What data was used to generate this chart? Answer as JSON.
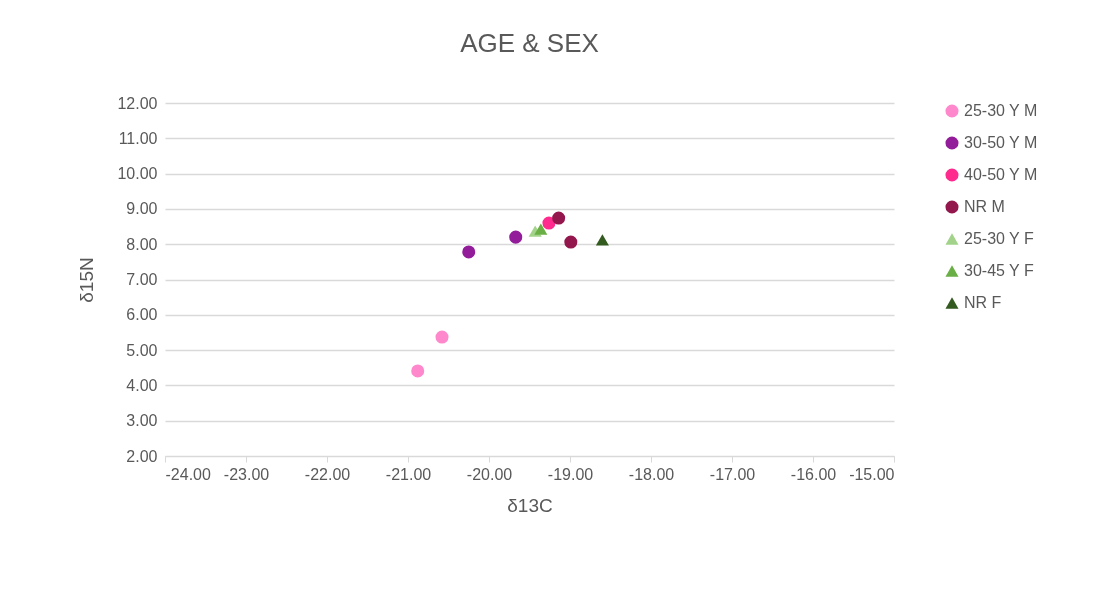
{
  "chart_data": {
    "type": "scatter",
    "title": "AGE & SEX",
    "xlabel": "δ13C",
    "ylabel": "δ15N",
    "xlim": [
      -24,
      -15
    ],
    "xticks": [
      {
        "value": -24,
        "label": "-24.00"
      },
      {
        "value": -23,
        "label": "-23.00"
      },
      {
        "value": -22,
        "label": "-22.00"
      },
      {
        "value": -21,
        "label": "-21.00"
      },
      {
        "value": -20,
        "label": "-20.00"
      },
      {
        "value": -19,
        "label": "-19.00"
      },
      {
        "value": -18,
        "label": "-18.00"
      },
      {
        "value": -17,
        "label": "-17.00"
      },
      {
        "value": -16,
        "label": "-16.00"
      },
      {
        "value": -15,
        "label": "-15.00"
      }
    ],
    "ylim": [
      2,
      12
    ],
    "yticks": [
      {
        "value": 2,
        "label": "2.00"
      },
      {
        "value": 3,
        "label": "3.00"
      },
      {
        "value": 4,
        "label": "4.00"
      },
      {
        "value": 5,
        "label": "5.00"
      },
      {
        "value": 6,
        "label": "6.00"
      },
      {
        "value": 7,
        "label": "7.00"
      },
      {
        "value": 8,
        "label": "8.00"
      },
      {
        "value": 9,
        "label": "9.00"
      },
      {
        "value": 10,
        "label": "10.00"
      },
      {
        "value": 11,
        "label": "11.00"
      },
      {
        "value": 12,
        "label": "12.00"
      }
    ],
    "grid": "y",
    "legend": "right",
    "series": [
      {
        "name": "25-30 Y M",
        "color": "#ff88cc",
        "marker": "circle",
        "x": [
          -20.88,
          -20.58
        ],
        "values": [
          4.41,
          5.37
        ]
      },
      {
        "name": "30-50 Y  M",
        "color": "#921c99",
        "marker": "circle",
        "x": [
          -20.25,
          -19.67
        ],
        "values": [
          7.78,
          8.2
        ]
      },
      {
        "name": "40-50 Y M",
        "color": "#ff2a8e",
        "marker": "circle",
        "x": [
          -19.26
        ],
        "values": [
          8.6
        ]
      },
      {
        "name": "NR M",
        "color": "#93174d",
        "marker": "circle",
        "x": [
          -19.14,
          -18.99
        ],
        "values": [
          8.74,
          8.06
        ]
      },
      {
        "name": "25-30 Y F",
        "color": "#a3d38a",
        "marker": "triangle",
        "x": [
          -19.43
        ],
        "values": [
          8.37
        ]
      },
      {
        "name": "30-45 Y F",
        "color": "#6aaf45",
        "marker": "triangle",
        "x": [
          -19.36
        ],
        "values": [
          8.43
        ]
      },
      {
        "name": "NR F",
        "color": "#335a1f",
        "marker": "triangle",
        "x": [
          -18.6
        ],
        "values": [
          8.12
        ]
      }
    ]
  }
}
